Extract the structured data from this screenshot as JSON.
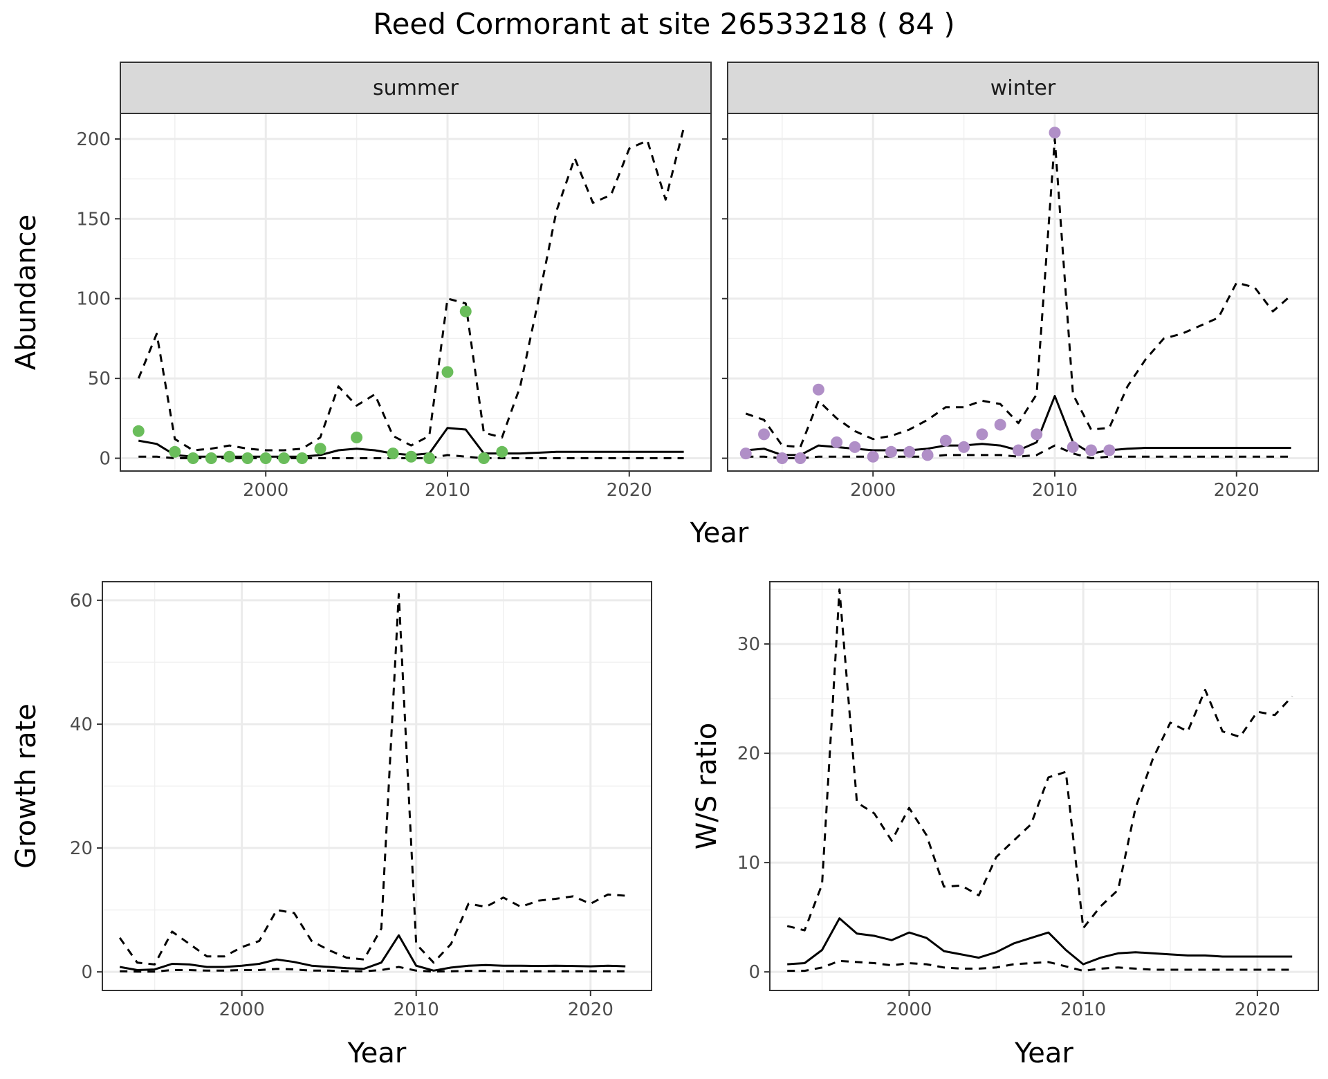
{
  "title": "Reed Cormorant at site 26533218 ( 84 )",
  "chart_data": [
    {
      "type": "line",
      "panel": "summer",
      "strip": "summer",
      "xlabel": "Year",
      "ylabel": "Abundance",
      "xlim": [
        1992,
        2024.5
      ],
      "ylim": [
        -8,
        216
      ],
      "xticks": [
        2000,
        2010,
        2020
      ],
      "yticks": [
        0,
        50,
        100,
        150,
        200
      ],
      "x": [
        1993,
        1994,
        1995,
        1996,
        1997,
        1998,
        1999,
        2000,
        2001,
        2002,
        2003,
        2004,
        2005,
        2006,
        2007,
        2008,
        2009,
        2010,
        2011,
        2012,
        2013,
        2014,
        2015,
        2016,
        2017,
        2018,
        2019,
        2020,
        2021,
        2022,
        2023
      ],
      "series": [
        {
          "role": "mean",
          "style": "solid",
          "values": [
            11,
            9,
            2,
            1,
            1,
            1,
            1,
            1,
            1,
            1,
            2,
            5,
            6,
            5,
            3,
            2,
            3,
            19,
            18,
            3,
            3,
            3,
            3.5,
            4,
            4,
            4,
            4,
            4,
            4,
            4,
            4
          ]
        },
        {
          "role": "upper",
          "style": "dashed",
          "values": [
            50,
            78,
            12,
            5,
            6,
            8,
            6,
            5,
            5,
            6,
            13,
            45,
            33,
            40,
            14,
            8,
            14,
            100,
            97,
            16,
            13,
            45,
            99,
            155,
            188,
            160,
            165,
            194,
            199,
            162,
            207
          ]
        },
        {
          "role": "lower",
          "style": "dashed",
          "values": [
            1,
            1,
            0,
            0,
            0,
            0,
            0,
            0,
            0,
            0,
            0,
            0,
            0,
            0,
            0,
            0,
            0,
            2,
            1,
            0,
            0,
            0,
            0,
            0,
            0,
            0,
            0,
            0,
            0,
            0,
            0
          ]
        }
      ],
      "points": {
        "color": "#6abd5b",
        "x": [
          1993,
          1995,
          1996,
          1997,
          1998,
          1999,
          2000,
          2001,
          2002,
          2003,
          2005,
          2007,
          2008,
          2009,
          2010,
          2011,
          2012,
          2013
        ],
        "y": [
          17,
          4,
          0,
          0,
          1,
          0,
          0,
          0,
          0,
          6,
          13,
          3,
          1,
          0,
          54,
          92,
          0,
          4
        ]
      }
    },
    {
      "type": "line",
      "panel": "winter",
      "strip": "winter",
      "xlabel": "Year",
      "ylabel": "",
      "xlim": [
        1992,
        2024.5
      ],
      "ylim": [
        -8,
        216
      ],
      "xticks": [
        2000,
        2010,
        2020
      ],
      "yticks": [
        0,
        50,
        100,
        150,
        200
      ],
      "x": [
        1993,
        1994,
        1995,
        1996,
        1997,
        1998,
        1999,
        2000,
        2001,
        2002,
        2003,
        2004,
        2005,
        2006,
        2007,
        2008,
        2009,
        2010,
        2011,
        2012,
        2013,
        2014,
        2015,
        2016,
        2017,
        2018,
        2019,
        2020,
        2021,
        2022,
        2023
      ],
      "series": [
        {
          "role": "mean",
          "style": "solid",
          "values": [
            5,
            6,
            2,
            2,
            8,
            7,
            6,
            5,
            5,
            5,
            6,
            8,
            8,
            9,
            8,
            5,
            10,
            39,
            10,
            3,
            5,
            6,
            6.5,
            6.5,
            6.5,
            6.5,
            6.5,
            6.5,
            6.5,
            6.5,
            6.5
          ]
        },
        {
          "role": "upper",
          "style": "dashed",
          "values": [
            28,
            24,
            8,
            7,
            36,
            25,
            17,
            12,
            14,
            18,
            24,
            32,
            32,
            36,
            34,
            22,
            40,
            200,
            40,
            18,
            19,
            45,
            62,
            75,
            78,
            83,
            88,
            110,
            107,
            92,
            102
          ]
        },
        {
          "role": "lower",
          "style": "dashed",
          "values": [
            1,
            1,
            0,
            0,
            1,
            1,
            1,
            1,
            1,
            1,
            1,
            2,
            2,
            2,
            2,
            1,
            2,
            8,
            3,
            0,
            1,
            1,
            1,
            1,
            1,
            1,
            1,
            1,
            1,
            1,
            1
          ]
        }
      ],
      "points": {
        "color": "#b08fc7",
        "x": [
          1993,
          1994,
          1995,
          1996,
          1997,
          1998,
          1999,
          2000,
          2001,
          2002,
          2003,
          2004,
          2005,
          2006,
          2007,
          2008,
          2009,
          2010,
          2011,
          2012,
          2013
        ],
        "y": [
          3,
          15,
          0,
          0,
          43,
          10,
          7,
          1,
          4,
          4,
          2,
          11,
          7,
          15,
          21,
          5,
          15,
          204,
          7,
          5,
          5
        ]
      }
    },
    {
      "type": "line",
      "panel": "growth",
      "xlabel": "Year",
      "ylabel": "Growth rate",
      "xlim": [
        1992,
        2023.5
      ],
      "ylim": [
        -3,
        63
      ],
      "xticks": [
        2000,
        2010,
        2020
      ],
      "yticks": [
        0,
        20,
        40,
        60
      ],
      "x": [
        1993,
        1994,
        1995,
        1996,
        1997,
        1998,
        1999,
        2000,
        2001,
        2002,
        2003,
        2004,
        2005,
        2006,
        2007,
        2008,
        2009,
        2010,
        2011,
        2012,
        2013,
        2014,
        2015,
        2016,
        2017,
        2018,
        2019,
        2020,
        2021,
        2022
      ],
      "series": [
        {
          "role": "mean",
          "style": "solid",
          "values": [
            0.8,
            0.3,
            0.4,
            1.3,
            1.2,
            0.8,
            0.8,
            1.0,
            1.3,
            2.0,
            1.6,
            1.0,
            0.8,
            0.6,
            0.5,
            1.5,
            5.9,
            1.0,
            0.2,
            0.7,
            1.0,
            1.1,
            1.0,
            1.0,
            0.95,
            1.0,
            0.95,
            0.9,
            1.0,
            0.9
          ]
        },
        {
          "role": "upper",
          "style": "dashed",
          "values": [
            5.5,
            1.5,
            1.2,
            6.5,
            4.5,
            2.5,
            2.5,
            4.0,
            5.0,
            10.0,
            9.5,
            5.0,
            3.5,
            2.3,
            2.0,
            7.0,
            61,
            4.5,
            1.5,
            4.5,
            11,
            10.5,
            12,
            10.5,
            11.5,
            11.8,
            12.2,
            11,
            12.5,
            12.3
          ]
        },
        {
          "role": "lower",
          "style": "dashed",
          "values": [
            0.1,
            0.05,
            0.05,
            0.3,
            0.3,
            0.2,
            0.2,
            0.3,
            0.3,
            0.5,
            0.4,
            0.2,
            0.2,
            0.1,
            0.1,
            0.3,
            0.8,
            0.2,
            0.05,
            0.1,
            0.15,
            0.15,
            0.1,
            0.1,
            0.1,
            0.1,
            0.1,
            0.1,
            0.1,
            0.1
          ]
        }
      ]
    },
    {
      "type": "line",
      "panel": "ratio",
      "xlabel": "Year",
      "ylabel": "W/S ratio",
      "xlim": [
        1992,
        2023.5
      ],
      "ylim": [
        -1.7,
        35.7
      ],
      "xticks": [
        2000,
        2010,
        2020
      ],
      "yticks": [
        0,
        10,
        20,
        30
      ],
      "x": [
        1993,
        1994,
        1995,
        1996,
        1997,
        1998,
        1999,
        2000,
        2001,
        2002,
        2003,
        2004,
        2005,
        2006,
        2007,
        2008,
        2009,
        2010,
        2011,
        2012,
        2013,
        2014,
        2015,
        2016,
        2017,
        2018,
        2019,
        2020,
        2021,
        2022
      ],
      "series": [
        {
          "role": "mean",
          "style": "solid",
          "values": [
            0.7,
            0.8,
            2.0,
            4.9,
            3.5,
            3.3,
            2.9,
            3.6,
            3.1,
            1.9,
            1.6,
            1.3,
            1.8,
            2.6,
            3.1,
            3.6,
            2.0,
            0.7,
            1.3,
            1.7,
            1.8,
            1.7,
            1.6,
            1.5,
            1.5,
            1.4,
            1.4,
            1.4,
            1.4,
            1.4
          ]
        },
        {
          "role": "upper",
          "style": "dashed",
          "values": [
            4.2,
            3.8,
            8.0,
            35,
            15.5,
            14.5,
            12.0,
            15.0,
            12.5,
            7.8,
            7.9,
            7.0,
            10.5,
            12.0,
            13.5,
            17.8,
            18.3,
            4.0,
            6.0,
            7.5,
            15.0,
            19.5,
            22.8,
            22.0,
            25.8,
            22.0,
            21.5,
            23.8,
            23.5,
            25.2
          ]
        },
        {
          "role": "lower",
          "style": "dashed",
          "values": [
            0.1,
            0.1,
            0.4,
            1.0,
            0.9,
            0.8,
            0.6,
            0.8,
            0.7,
            0.4,
            0.3,
            0.3,
            0.4,
            0.7,
            0.8,
            0.9,
            0.5,
            0.1,
            0.3,
            0.4,
            0.3,
            0.2,
            0.2,
            0.2,
            0.2,
            0.2,
            0.2,
            0.2,
            0.2,
            0.2
          ]
        }
      ]
    }
  ]
}
